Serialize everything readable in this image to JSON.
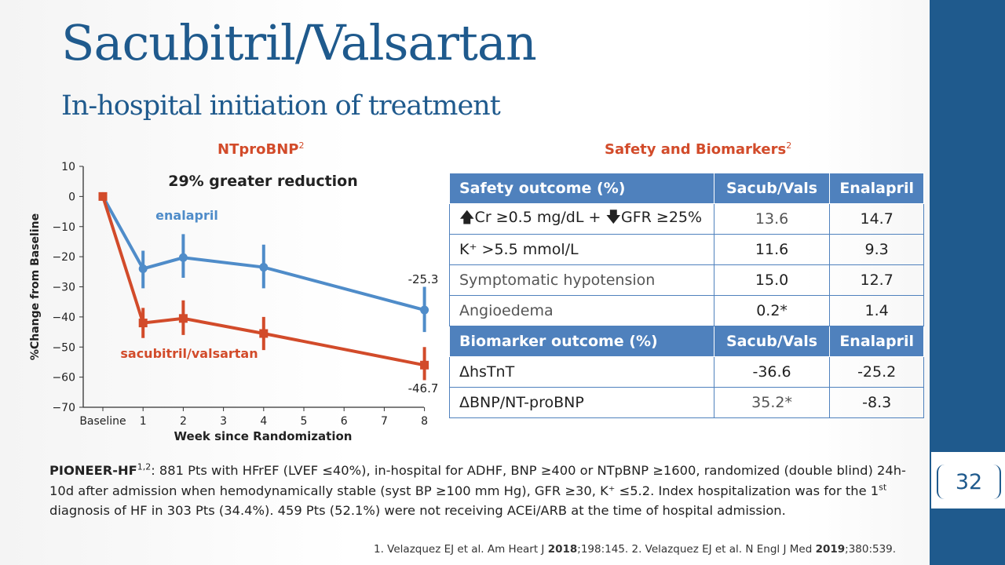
{
  "title": "Sacubitril/Valsartan",
  "subtitle": "In-hospital initiation of treatment",
  "chart_section": {
    "title": "NTproBNP",
    "title_sup": "2"
  },
  "table_section": {
    "title": "Safety and Biomarkers",
    "title_sup": "2"
  },
  "chart_data": {
    "type": "line",
    "annotation": "29% greater reduction",
    "xlabel": "Week since Randomization",
    "ylabel": "%Change from Baseline",
    "ylim": [
      -70,
      10
    ],
    "yticks": [
      "10",
      "0",
      "−10",
      "−20",
      "−30",
      "−40",
      "−50",
      "−60",
      "−70"
    ],
    "xticks": [
      "Baseline",
      "1",
      "2",
      "3",
      "4",
      "5",
      "6",
      "7",
      "8"
    ],
    "series": [
      {
        "name": "enalapril",
        "color": "#4f8cc9",
        "x": [
          0,
          1,
          2,
          4,
          8
        ],
        "y": [
          0,
          -24,
          -20.3,
          -23.5,
          -37.7
        ],
        "err_low": [
          0,
          -30.5,
          -27,
          -30.5,
          -45
        ],
        "err_high": [
          0,
          -18,
          -12.5,
          -16,
          -30
        ],
        "end_label": "-25.3"
      },
      {
        "name": "sacubitril/valsartan",
        "color": "#d24b2a",
        "x": [
          0,
          1,
          2,
          4,
          8
        ],
        "y": [
          0,
          -42,
          -40.5,
          -45.5,
          -56
        ],
        "err_low": [
          0,
          -47,
          -46,
          -51,
          -61
        ],
        "err_high": [
          0,
          -37,
          -34.5,
          -40,
          -50
        ],
        "end_label": "-46.7"
      }
    ]
  },
  "table": {
    "safety_header": [
      "Safety outcome (%)",
      "Sacub/Vals",
      "Enalapril"
    ],
    "safety_rows": [
      {
        "arrow_up": "🡅",
        "part1": "Cr ≥0.5 mg/dL + ",
        "arrow_down": "🡇",
        "part2": "GFR ≥25%",
        "sv": "13.6",
        "en": "14.7"
      },
      {
        "label": "K⁺ >5.5 mmol/L",
        "sv": "11.6",
        "en": "9.3"
      },
      {
        "label": "Symptomatic hypotension",
        "sv": "15.0",
        "en": "12.7"
      },
      {
        "label": "Angioedema",
        "sv": "0.2*",
        "en": "1.4"
      }
    ],
    "biomarker_header": [
      "Biomarker outcome (%)",
      "Sacub/Vals",
      "Enalapril"
    ],
    "biomarker_rows": [
      {
        "label": "ΔhsTnT",
        "sv": "-36.6",
        "en": "-25.2"
      },
      {
        "label": "ΔBNP/NT-proBNP",
        "sv": "35.2*",
        "en": "-8.3"
      }
    ]
  },
  "footer": {
    "study": "PIONEER-HF",
    "study_sup": "1,2",
    "line1": ": 881 Pts with HFrEF (LVEF ≤40%), in-hospital for ADHF, BNP ≥400 or NTpBNP ≥1600, randomized (double blind) 24h-10d after admission when hemodynamically stable (syst BP ≥100 mm Hg), GFR ≥30, K⁺ ≤5.2. Index hospitalization was for the 1",
    "first_sup": "st",
    "line2": " diagnosis of HF in 303 Pts (34.4%). 459 Pts (52.1%) were not receiving ACEi/ARB at the time of hospital admission."
  },
  "references": {
    "r1a": "1. Velazquez EJ et al. Am Heart J ",
    "r1year": "2018",
    "r1b": ";198:145. 2. Velazquez EJ et al. N Engl J Med ",
    "r2year": "2019",
    "r2b": ";380:539."
  },
  "page_number": "32"
}
